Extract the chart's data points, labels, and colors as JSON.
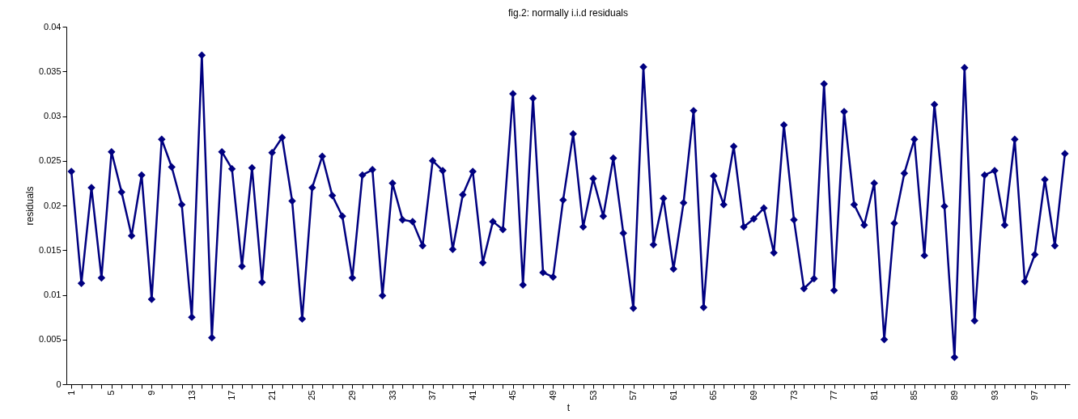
{
  "chart_data": {
    "type": "line",
    "title": "fig.2: normally i.i.d residuals",
    "xlabel": "t",
    "ylabel": "residuals",
    "categories": [
      "1",
      null,
      null,
      null,
      "5",
      null,
      null,
      null,
      "9",
      null,
      null,
      null,
      "13",
      null,
      null,
      null,
      "17",
      null,
      null,
      null,
      "21",
      null,
      null,
      null,
      "25",
      null,
      null,
      null,
      "29",
      null,
      null,
      null,
      "33",
      null,
      null,
      null,
      "37",
      null,
      null,
      null,
      "41",
      null,
      null,
      null,
      "45",
      null,
      null,
      null,
      "49",
      null,
      null,
      null,
      "53",
      null,
      null,
      null,
      "57",
      null,
      null,
      null,
      "61",
      null,
      null,
      null,
      "65",
      null,
      null,
      null,
      "69",
      null,
      null,
      null,
      "73",
      null,
      null,
      null,
      "77",
      null,
      null,
      null,
      "81",
      null,
      null,
      null,
      "85",
      null,
      null,
      null,
      "89",
      null,
      null,
      null,
      "93",
      null,
      null,
      null,
      "97",
      null,
      null,
      null
    ],
    "series": [
      {
        "color": "#000080",
        "values": [
          0.0238,
          0.0113,
          0.022,
          0.0119,
          0.026,
          0.0215,
          0.0166,
          0.0234,
          0.0095,
          0.0274,
          0.0243,
          0.0201,
          0.0075,
          0.0368,
          0.0052,
          0.026,
          0.0241,
          0.0132,
          0.0242,
          0.0114,
          0.0259,
          0.0276,
          0.0205,
          0.0073,
          0.022,
          0.0255,
          0.0211,
          0.0188,
          0.0119,
          0.0234,
          0.024,
          0.0099,
          0.0225,
          0.0184,
          0.0182,
          0.0155,
          0.025,
          0.0239,
          0.0151,
          0.0212,
          0.0238,
          0.0136,
          0.0182,
          0.0173,
          0.0325,
          0.0111,
          0.032,
          0.0125,
          0.012,
          0.0206,
          0.028,
          0.0176,
          0.023,
          0.0188,
          0.0253,
          0.0169,
          0.0085,
          0.0355,
          0.0156,
          0.0208,
          0.0129,
          0.0203,
          0.0306,
          0.0086,
          0.0233,
          0.0201,
          0.0266,
          0.0176,
          0.0185,
          0.0197,
          0.0147,
          0.029,
          0.0184,
          0.0107,
          0.0118,
          0.0336,
          0.0105,
          0.0305,
          0.0201,
          0.0178,
          0.0225,
          0.005,
          0.018,
          0.0236,
          0.0274,
          0.0144,
          0.0313,
          0.0199,
          0.003,
          0.0354,
          0.0071,
          0.0234,
          0.0239,
          0.0178,
          0.0274,
          0.0115,
          0.0145,
          0.0229,
          0.0155,
          0.0258
        ]
      }
    ],
    "ylim": [
      0,
      0.04
    ],
    "yticks": [
      0,
      0.005,
      0.01,
      0.015,
      0.02,
      0.025,
      0.03,
      0.035,
      0.04
    ],
    "grid": false,
    "marker": "diamond"
  }
}
